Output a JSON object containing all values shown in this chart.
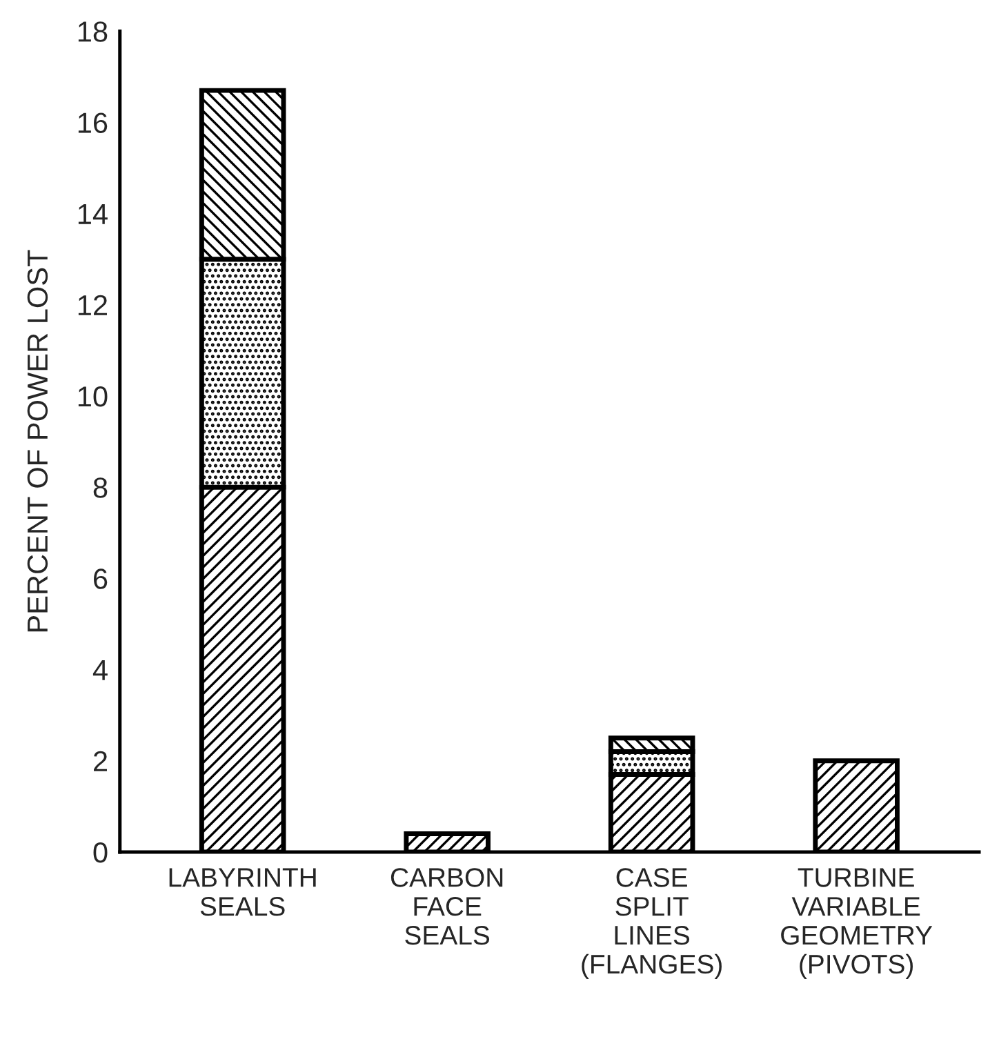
{
  "chart_data": {
    "type": "bar",
    "stacked": true,
    "ylabel": "PERCENT OF POWER LOST",
    "categories": [
      "LABYRINTH\nSEALS",
      "CARBON\nFACE\nSEALS",
      "CASE\nSPLIT\nLINES\n(FLANGES)",
      "TURBINE\nVARIABLE\nGEOMETRY\n(PIVOTS)"
    ],
    "series": [
      {
        "color": "#000000",
        "values": [
          8,
          0.4,
          1.7,
          2.0
        ]
      },
      {
        "color": "#000000",
        "values": [
          5,
          null,
          0.5,
          null
        ]
      },
      {
        "color": "#000000",
        "values": [
          3.7,
          null,
          0.3,
          null
        ]
      }
    ],
    "ylim": [
      0,
      18
    ],
    "yticks": [
      0,
      2,
      4,
      6,
      8,
      10,
      12,
      14,
      16,
      18
    ],
    "grid": false,
    "legend": false
  }
}
